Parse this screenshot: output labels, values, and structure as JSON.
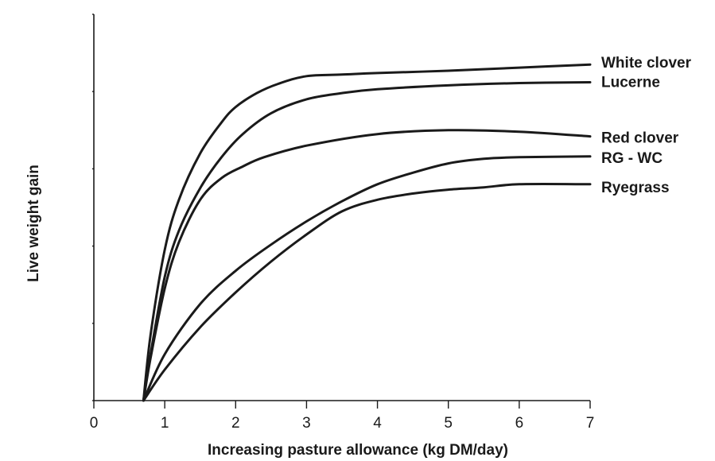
{
  "chart_data": {
    "type": "line",
    "title": "",
    "xlabel": "Increasing pasture allowance (kg DM/day)",
    "ylabel": "Live weight gain",
    "xlim": [
      0,
      7
    ],
    "ylim": [
      0,
      5
    ],
    "x_ticks": [
      0,
      1,
      2,
      3,
      4,
      5,
      6,
      7
    ],
    "x_tick_labels": [
      "0",
      "1",
      "2",
      "3",
      "4",
      "5",
      "6",
      "7"
    ],
    "y_ticks": [
      0,
      1,
      2,
      3,
      4,
      5
    ],
    "y_tick_labels": [],
    "grid": false,
    "legend": "none",
    "line_color": "#1a1a1a",
    "series": [
      {
        "name": "White clover",
        "x": [
          0.7,
          0.8,
          1.0,
          1.2,
          1.5,
          1.8,
          2.0,
          2.3,
          2.6,
          3.0,
          3.5,
          4.0,
          5.0,
          6.0,
          7.0
        ],
        "y": [
          0.0,
          0.85,
          1.95,
          2.6,
          3.2,
          3.6,
          3.8,
          3.98,
          4.1,
          4.2,
          4.22,
          4.24,
          4.27,
          4.31,
          4.35
        ]
      },
      {
        "name": "Lucerne",
        "x": [
          0.7,
          0.8,
          1.0,
          1.2,
          1.5,
          1.8,
          2.1,
          2.5,
          3.0,
          3.5,
          4.0,
          5.0,
          6.0,
          7.0
        ],
        "y": [
          0.0,
          0.6,
          1.6,
          2.2,
          2.75,
          3.15,
          3.45,
          3.72,
          3.9,
          3.98,
          4.03,
          4.08,
          4.11,
          4.12
        ]
      },
      {
        "name": "Red clover",
        "x": [
          0.7,
          0.8,
          1.0,
          1.2,
          1.5,
          1.8,
          2.1,
          2.4,
          3.0,
          4.0,
          5.0,
          6.0,
          7.0
        ],
        "y": [
          0.0,
          0.55,
          1.45,
          2.05,
          2.6,
          2.88,
          3.03,
          3.15,
          3.3,
          3.45,
          3.5,
          3.48,
          3.42
        ]
      },
      {
        "name": "RG - WC",
        "x": [
          0.7,
          1.0,
          1.5,
          2.0,
          2.5,
          3.0,
          3.5,
          4.0,
          4.5,
          5.0,
          5.5,
          6.0,
          7.0
        ],
        "y": [
          0.0,
          0.6,
          1.25,
          1.68,
          2.02,
          2.32,
          2.58,
          2.8,
          2.95,
          3.07,
          3.13,
          3.15,
          3.16
        ]
      },
      {
        "name": "Ryegrass",
        "x": [
          0.7,
          1.0,
          1.5,
          2.0,
          2.5,
          3.0,
          3.5,
          4.0,
          4.5,
          5.0,
          5.5,
          6.0,
          7.0
        ],
        "y": [
          0.0,
          0.4,
          0.95,
          1.4,
          1.8,
          2.15,
          2.45,
          2.6,
          2.68,
          2.73,
          2.76,
          2.8,
          2.8
        ]
      }
    ]
  }
}
